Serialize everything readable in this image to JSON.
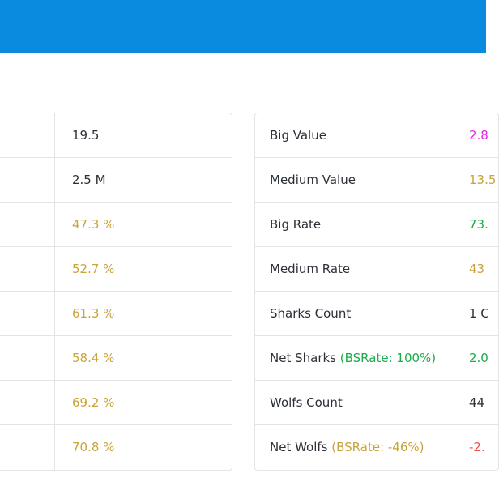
{
  "colors": {
    "header_blue": "#0b8be0",
    "dark": "#2b2f36",
    "yellow": "#c9a43a",
    "green": "#1aab4b",
    "magenta": "#e028e0",
    "red": "#f05252"
  },
  "left_table": {
    "rows": [
      {
        "value": "19.5",
        "color": "dark"
      },
      {
        "value": "2.5 M",
        "color": "dark"
      },
      {
        "value": "47.3 %",
        "color": "yellow"
      },
      {
        "value": "52.7 %",
        "color": "yellow"
      },
      {
        "value": "61.3 %",
        "color": "yellow"
      },
      {
        "value": "58.4 %",
        "color": "yellow"
      },
      {
        "value": "69.2 %",
        "color": "yellow"
      },
      {
        "value": "70.8 %",
        "color": "yellow"
      }
    ]
  },
  "right_table": {
    "rows": [
      {
        "label": "Big Value",
        "badge": "",
        "value": "2.8",
        "color": "magenta"
      },
      {
        "label": "Medium Value",
        "badge": "",
        "value": "13.5",
        "color": "yellow"
      },
      {
        "label": "Big Rate",
        "badge": "",
        "value": "73.",
        "color": "green"
      },
      {
        "label": "Medium Rate",
        "badge": "",
        "value": "43",
        "color": "yellow"
      },
      {
        "label": "Sharks Count",
        "badge": "",
        "value": "1 C",
        "color": "dark"
      },
      {
        "label": "Net Sharks",
        "badge": "(BSRate: 100%)",
        "badge_color": "green",
        "value": "2.0",
        "color": "green"
      },
      {
        "label": "Wolfs Count",
        "badge": "",
        "value": "44",
        "color": "dark"
      },
      {
        "label": "Net Wolfs",
        "badge": "(BSRate: -46%)",
        "badge_color": "yellow",
        "value": "-2.",
        "color": "red"
      }
    ]
  }
}
